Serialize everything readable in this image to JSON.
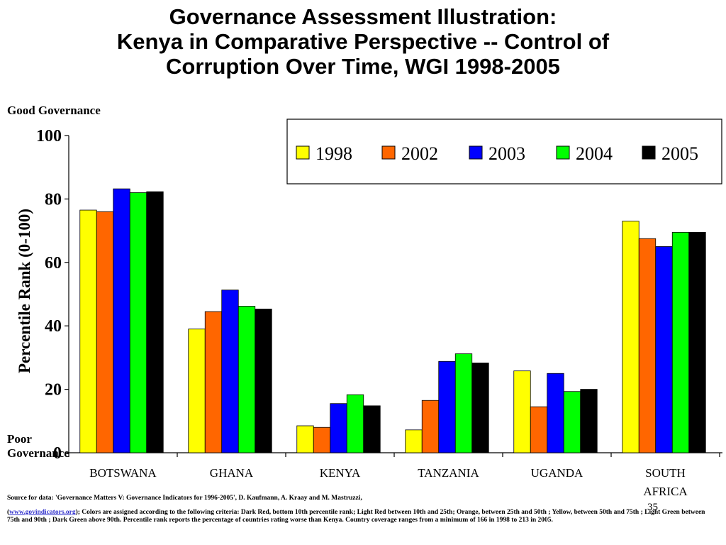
{
  "title": {
    "line1": "Governance Assessment Illustration:",
    "line2": "Kenya in Comparative Perspective -- Control of",
    "line3": "Corruption Over Time,  WGI 1998-2005"
  },
  "labels": {
    "good": "Good Governance",
    "poor_line1": "Poor",
    "poor_line2": "Governance"
  },
  "source": {
    "line1": "Source for data: 'Governance Matters V: Governance Indicators for 1996-2005', D. Kaufmann, A. Kraay and M. Mastruzzi,",
    "open_paren": "(",
    "link": "www.govindicators.org",
    "line2_rest": ");  Colors are assigned according to the following criteria:  Dark Red, bottom 10th percentile rank; Light Red between 10th and 25th; Orange, between 25th  and 50th ; Yellow, between 50th  and 75th ; Light  Green between 75th  and 90th  ; Dark Green above 90th. Percentile rank reports the percentage of countries rating worse than Kenya. Country coverage ranges from a minimum of 166 in 1998 to 213 in 2005."
  },
  "slide_number": "35",
  "chart_data": {
    "type": "bar",
    "title": "",
    "xlabel": "",
    "ylabel": "Percentile Rank (0-100)",
    "ylim": [
      0,
      100
    ],
    "yticks": [
      0,
      20,
      40,
      60,
      80,
      100
    ],
    "grid": false,
    "legend_position": "top-right",
    "categories": [
      "BOTSWANA",
      "GHANA",
      "KENYA",
      "TANZANIA",
      "UGANDA",
      "SOUTH AFRICA"
    ],
    "series": [
      {
        "name": "1998",
        "color": "#ffff00",
        "values": [
          76.5,
          39,
          8.5,
          7.2,
          25.8,
          73
        ]
      },
      {
        "name": "2002",
        "color": "#ff6600",
        "values": [
          76,
          44.5,
          8,
          16.5,
          14.5,
          67.5
        ]
      },
      {
        "name": "2003",
        "color": "#0000ff",
        "values": [
          83.2,
          51.3,
          15.5,
          28.8,
          25,
          65
        ]
      },
      {
        "name": "2004",
        "color": "#00ff00",
        "values": [
          82,
          46.2,
          18.3,
          31.2,
          19.3,
          69.5
        ]
      },
      {
        "name": "2005",
        "color": "#000000",
        "values": [
          82.3,
          45.3,
          14.8,
          28.3,
          20,
          69.5
        ]
      }
    ]
  }
}
